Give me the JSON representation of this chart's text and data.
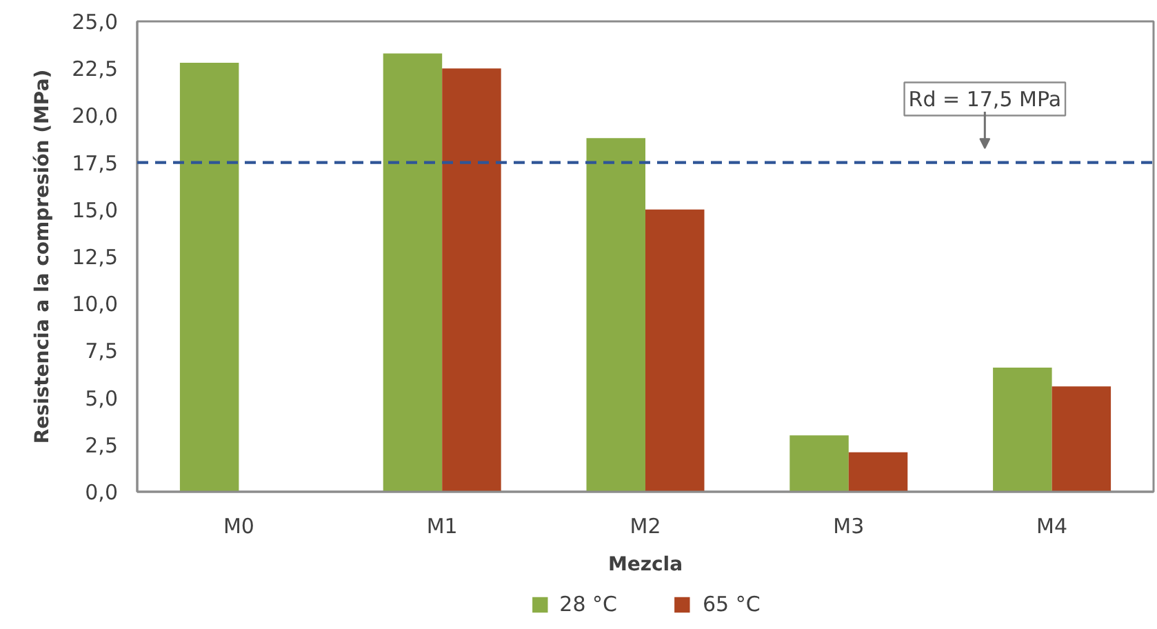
{
  "chart_data": {
    "type": "bar",
    "xlabel": "Mezcla",
    "ylabel": "Resistencia a la compresión (MPa)",
    "categories": [
      "M0",
      "M1",
      "M2",
      "M3",
      "M4"
    ],
    "series": [
      {
        "name": "28 °C",
        "color": "#8bac46",
        "values": [
          22.8,
          23.3,
          18.8,
          3.0,
          6.6
        ]
      },
      {
        "name": "65 °C",
        "color": "#ad4420",
        "values": [
          null,
          22.5,
          15.0,
          2.1,
          5.6
        ]
      }
    ],
    "ylim": [
      0,
      25
    ],
    "yticks": [
      {
        "value": 0,
        "label": "0,0"
      },
      {
        "value": 2.5,
        "label": "2,5"
      },
      {
        "value": 5,
        "label": "5,0"
      },
      {
        "value": 7.5,
        "label": "7,5"
      },
      {
        "value": 10,
        "label": "10,0"
      },
      {
        "value": 12.5,
        "label": "12,5"
      },
      {
        "value": 15,
        "label": "15,0"
      },
      {
        "value": 17.5,
        "label": "17,5"
      },
      {
        "value": 20,
        "label": "20,0"
      },
      {
        "value": 22.5,
        "label": "22,5"
      },
      {
        "value": 25,
        "label": "25,0"
      }
    ],
    "ref_lines": [
      {
        "axis": "y",
        "value": 17.5,
        "label": "Rd = 17,5 MPa",
        "color": "#2f5597",
        "line_style": "dashed"
      }
    ],
    "legend": "bottom"
  }
}
